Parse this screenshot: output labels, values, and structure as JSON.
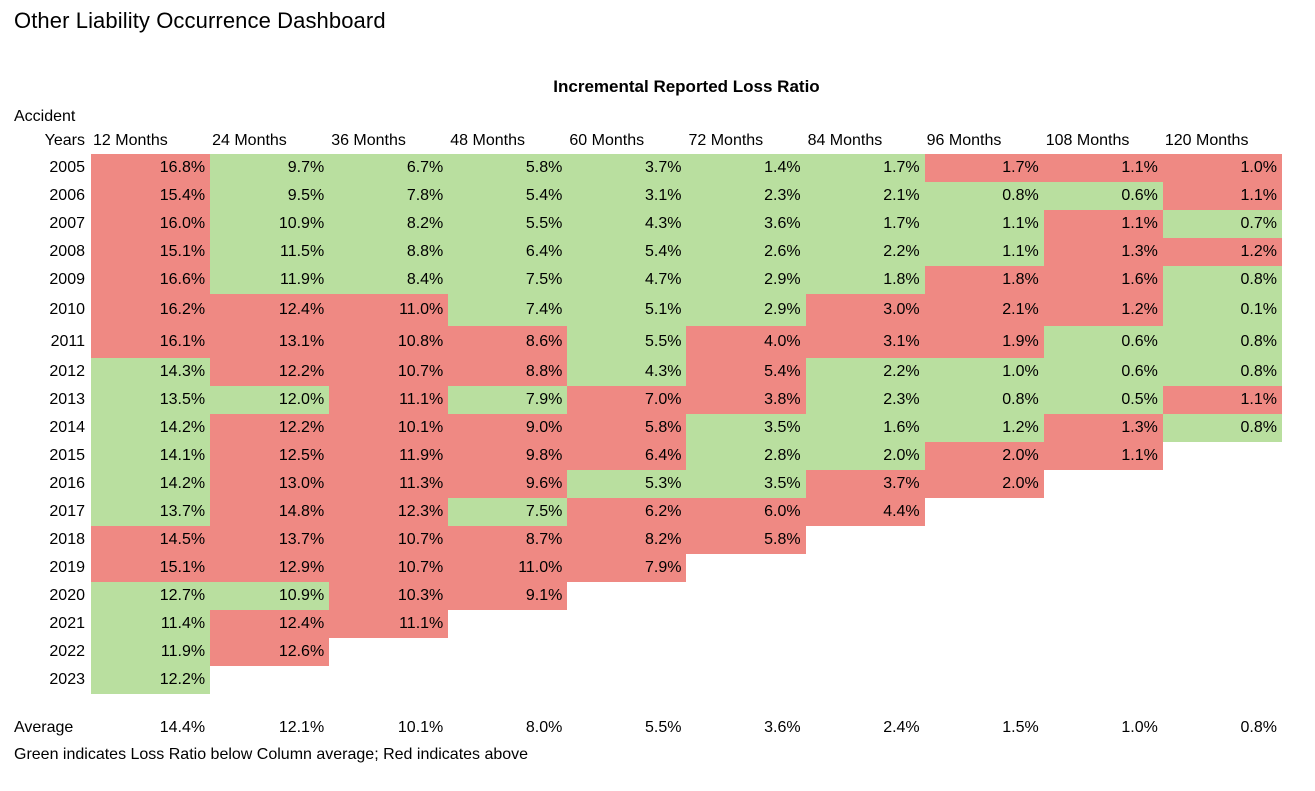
{
  "page_title": "Other Liability Occurrence Dashboard",
  "table": {
    "title": "Incremental Reported Loss Ratio",
    "corner_label_line1": "Accident",
    "corner_label_line2": "Years",
    "columns": [
      "12 Months",
      "24 Months",
      "36 Months",
      "48 Months",
      "60 Months",
      "72 Months",
      "84 Months",
      "96 Months",
      "108 Months",
      "120 Months"
    ],
    "rows": [
      {
        "year": "2005",
        "values": [
          "16.8%",
          "9.7%",
          "6.7%",
          "5.8%",
          "3.7%",
          "1.4%",
          "1.7%",
          "1.7%",
          "1.1%",
          "1.0%"
        ],
        "colors": "rggggggrrr"
      },
      {
        "year": "2006",
        "values": [
          "15.4%",
          "9.5%",
          "7.8%",
          "5.4%",
          "3.1%",
          "2.3%",
          "2.1%",
          "0.8%",
          "0.6%",
          "1.1%"
        ],
        "colors": "rggggggggr"
      },
      {
        "year": "2007",
        "values": [
          "16.0%",
          "10.9%",
          "8.2%",
          "5.5%",
          "4.3%",
          "3.6%",
          "1.7%",
          "1.1%",
          "1.1%",
          "0.7%"
        ],
        "colors": "rgggggggrg"
      },
      {
        "year": "2008",
        "values": [
          "15.1%",
          "11.5%",
          "8.8%",
          "6.4%",
          "5.4%",
          "2.6%",
          "2.2%",
          "1.1%",
          "1.3%",
          "1.2%"
        ],
        "colors": "rgggggggrr"
      },
      {
        "year": "2009",
        "values": [
          "16.6%",
          "11.9%",
          "8.4%",
          "7.5%",
          "4.7%",
          "2.9%",
          "1.8%",
          "1.8%",
          "1.6%",
          "0.8%"
        ],
        "colors": "rggggggrrg"
      },
      {
        "year": "2010",
        "values": [
          "16.2%",
          "12.4%",
          "11.0%",
          "7.4%",
          "5.1%",
          "2.9%",
          "3.0%",
          "2.1%",
          "1.2%",
          "0.1%"
        ],
        "colors": "rrrgggrrrg"
      },
      {
        "year": "2011",
        "values": [
          "16.1%",
          "13.1%",
          "10.8%",
          "8.6%",
          "5.5%",
          "4.0%",
          "3.1%",
          "1.9%",
          "0.6%",
          "0.8%"
        ],
        "colors": "rrrrgrrrgg"
      },
      {
        "year": "2012",
        "values": [
          "14.3%",
          "12.2%",
          "10.7%",
          "8.8%",
          "4.3%",
          "5.4%",
          "2.2%",
          "1.0%",
          "0.6%",
          "0.8%"
        ],
        "colors": "grrrgrgggg"
      },
      {
        "year": "2013",
        "values": [
          "13.5%",
          "12.0%",
          "11.1%",
          "7.9%",
          "7.0%",
          "3.8%",
          "2.3%",
          "0.8%",
          "0.5%",
          "1.1%"
        ],
        "colors": "ggrgrrgggr"
      },
      {
        "year": "2014",
        "values": [
          "14.2%",
          "12.2%",
          "10.1%",
          "9.0%",
          "5.8%",
          "3.5%",
          "1.6%",
          "1.2%",
          "1.3%",
          "0.8%"
        ],
        "colors": "grrrrgggrg"
      },
      {
        "year": "2015",
        "values": [
          "14.1%",
          "12.5%",
          "11.9%",
          "9.8%",
          "6.4%",
          "2.8%",
          "2.0%",
          "2.0%",
          "1.1%"
        ],
        "colors": "grrrrggrr"
      },
      {
        "year": "2016",
        "values": [
          "14.2%",
          "13.0%",
          "11.3%",
          "9.6%",
          "5.3%",
          "3.5%",
          "3.7%",
          "2.0%"
        ],
        "colors": "grrrggrr"
      },
      {
        "year": "2017",
        "values": [
          "13.7%",
          "14.8%",
          "12.3%",
          "7.5%",
          "6.2%",
          "6.0%",
          "4.4%"
        ],
        "colors": "grrgrrr"
      },
      {
        "year": "2018",
        "values": [
          "14.5%",
          "13.7%",
          "10.7%",
          "8.7%",
          "8.2%",
          "5.8%"
        ],
        "colors": "rrrrrr"
      },
      {
        "year": "2019",
        "values": [
          "15.1%",
          "12.9%",
          "10.7%",
          "11.0%",
          "7.9%"
        ],
        "colors": "rrrrr"
      },
      {
        "year": "2020",
        "values": [
          "12.7%",
          "10.9%",
          "10.3%",
          "9.1%"
        ],
        "colors": "ggrr"
      },
      {
        "year": "2021",
        "values": [
          "11.4%",
          "12.4%",
          "11.1%"
        ],
        "colors": "grr"
      },
      {
        "year": "2022",
        "values": [
          "11.9%",
          "12.6%"
        ],
        "colors": "gr"
      },
      {
        "year": "2023",
        "values": [
          "12.2%"
        ],
        "colors": "g"
      }
    ],
    "average_row": {
      "label": "Average",
      "values": [
        "14.4%",
        "12.1%",
        "10.1%",
        "8.0%",
        "5.5%",
        "3.6%",
        "2.4%",
        "1.5%",
        "1.0%",
        "0.8%"
      ]
    },
    "legend": "Green indicates Loss Ratio below Column average; Red indicates above",
    "colors": {
      "below_average_green": "#b9df9f",
      "above_average_red": "#ef8983"
    }
  }
}
